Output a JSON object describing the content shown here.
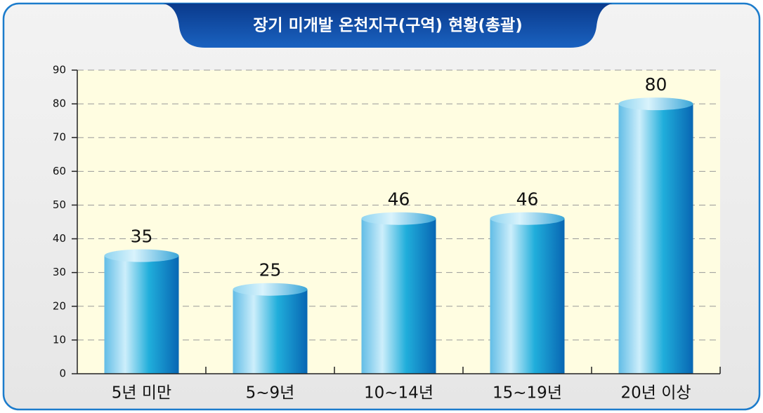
{
  "chart_data": {
    "type": "bar",
    "title": "장기 미개발 온천지구(구역) 현황(총괄)",
    "categories": [
      "5년 미만",
      "5~9년",
      "10~14년",
      "15~19년",
      "20년 이상"
    ],
    "values": [
      35,
      25,
      46,
      46,
      80
    ],
    "color": "#1aa3d6",
    "ylim": [
      0,
      90
    ],
    "yticks": [
      0,
      10,
      20,
      30,
      40,
      50,
      60,
      70,
      80,
      90
    ],
    "grid": true
  }
}
